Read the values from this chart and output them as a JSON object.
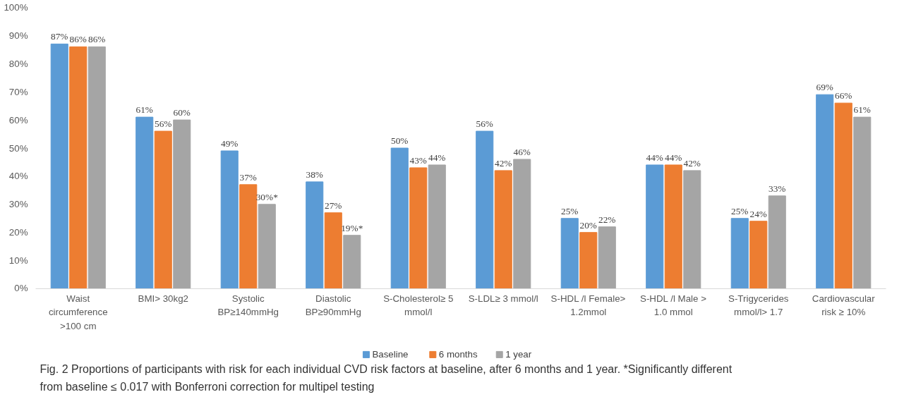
{
  "chart_data": {
    "type": "bar",
    "categories": [
      "Waist circumference >100 cm",
      "BMI> 30kg2",
      "Systolic BP≥140mmHg",
      "Diastolic BP≥90mmHg",
      "S-Cholesterol≥ 5 mmol/l",
      "S-LDL≥ 3 mmol/l",
      "S-HDL /l Female> 1.2mmol",
      "S-HDL /l Male > 1.0 mmol",
      "S-Trigycerides mmol/l> 1.7",
      "Cardiovascular risk ≥ 10%"
    ],
    "series": [
      {
        "name": "Baseline",
        "color": "#5b9bd5",
        "values": [
          87,
          61,
          49,
          38,
          50,
          56,
          25,
          44,
          25,
          69
        ],
        "value_labels": [
          "87%",
          "61%",
          "49%",
          "38%",
          "50%",
          "56%",
          "25%",
          "44%",
          "25%",
          "69%"
        ]
      },
      {
        "name": "6 months",
        "color": "#ed7d31",
        "values": [
          86,
          56,
          37,
          27,
          43,
          42,
          20,
          44,
          24,
          66
        ],
        "value_labels": [
          "86%",
          "56%",
          "37%",
          "27%",
          "43%",
          "42%",
          "20%",
          "44%",
          "24%",
          "66%"
        ]
      },
      {
        "name": "1 year",
        "color": "#a5a5a5",
        "values": [
          86,
          60,
          30,
          19,
          44,
          46,
          22,
          42,
          33,
          61
        ],
        "value_labels": [
          "86%",
          "60%",
          "30%*",
          "19%*",
          "44%",
          "46%",
          "22%",
          "42%",
          "33%",
          "61%"
        ]
      }
    ],
    "ylim": [
      0,
      100
    ],
    "yticks": [
      {
        "value": 0,
        "label": "0%"
      },
      {
        "value": 10,
        "label": "10%"
      },
      {
        "value": 20,
        "label": "20%"
      },
      {
        "value": 30,
        "label": "30%"
      },
      {
        "value": 40,
        "label": "40%"
      },
      {
        "value": 50,
        "label": "50%"
      },
      {
        "value": 60,
        "label": "60%"
      },
      {
        "value": 70,
        "label": "70%"
      },
      {
        "value": 80,
        "label": "80%"
      },
      {
        "value": 90,
        "label": "90%"
      },
      {
        "value": 100,
        "label": "100%"
      }
    ],
    "grid": false,
    "legend": "bottom",
    "annotations": [
      "Fig. 2 Proportions of participants with risk for each individual CVD risk factors at baseline, after 6 months and 1 year. *Significantly different from baseline ≤ 0.017 with Bonferroni correction for multipel testing"
    ]
  }
}
